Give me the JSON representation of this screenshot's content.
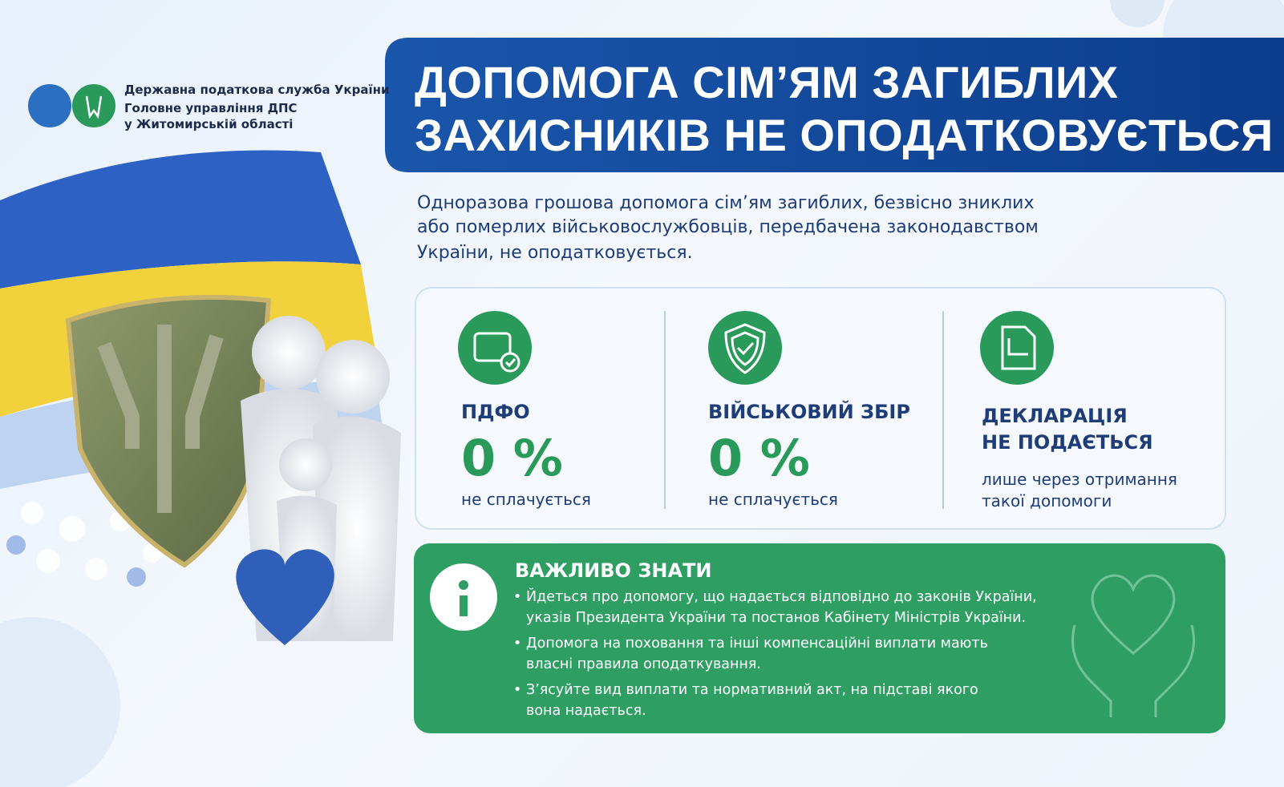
{
  "header": {
    "org_lines": [
      "Державна податкова служба України",
      "Головне управління ДПС",
      "у Житомирській області"
    ],
    "title_lines": [
      "ДОПОМОГА СІМ’ЯМ ЗАГИБЛИХ",
      "ЗАХИСНИКІВ НЕ ОПОДАТКОВУЄТЬСЯ"
    ]
  },
  "intro_lines": [
    "Одноразова грошова допомога сім’ям загиблих, безвісно зниклих",
    "або померлих військовослужбовців, передбачена законодавством",
    "України, не оподатковується."
  ],
  "cards": [
    {
      "title_lines": [
        "ПДФО"
      ],
      "value": "0 %",
      "note_lines": [
        "не сплачується"
      ]
    },
    {
      "title_lines": [
        "ВІЙСЬКОВИЙ ЗБІР"
      ],
      "value": "0 %",
      "note_lines": [
        "не сплачується"
      ]
    },
    {
      "title_lines": [
        "ДЕКЛАРАЦІЯ",
        "НЕ ПОДАЄТЬСЯ"
      ],
      "note_lines": [
        "лише через отримання",
        "такої допомоги"
      ]
    }
  ],
  "notice": {
    "title": "ВАЖЛИВО ЗНАТИ",
    "items": [
      [
        "Йдеться про допомогу, що надається відповідно до законів України,",
        "указів Президента України та постанов Кабінету Міністрів України."
      ],
      [
        "Допомога на поховання та інші компенсаційні виплати мають",
        "власні правила оподаткування."
      ],
      [
        "З’ясуйте вид виплати та нормативний акт, на підставі якого",
        "вона надається."
      ]
    ]
  }
}
